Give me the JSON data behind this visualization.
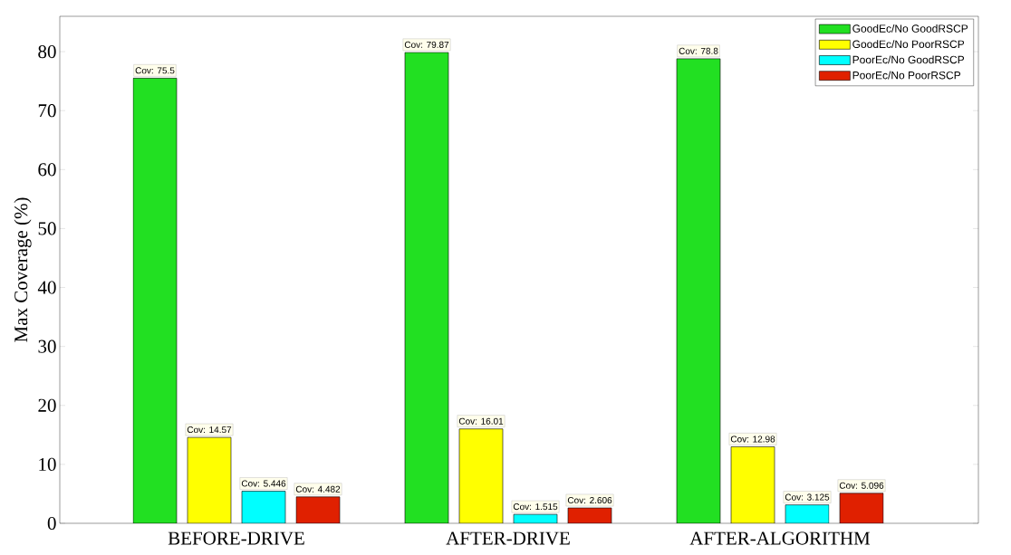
{
  "chart_data": {
    "type": "bar",
    "ylabel": "Max Coverage (%)",
    "categories": [
      "BEFORE-DRIVE",
      "AFTER-DRIVE",
      "AFTER-ALGORITHM"
    ],
    "series": [
      {
        "name": "GoodEc/No  GoodRSCP",
        "color": "#22e022",
        "values": [
          75.5,
          79.87,
          78.8
        ],
        "value_labels": [
          "Cov: 75.5",
          "Cov: 79.87",
          "Cov: 78.8"
        ]
      },
      {
        "name": "GoodEc/No  PoorRSCP",
        "color": "#ffff00",
        "values": [
          14.57,
          16.01,
          12.98
        ],
        "value_labels": [
          "Cov: 14.57",
          "Cov: 16.01",
          "Cov: 12.98"
        ]
      },
      {
        "name": "PoorEc/No  GoodRSCP",
        "color": "#00ffff",
        "values": [
          5.446,
          1.515,
          3.125
        ],
        "value_labels": [
          "Cov: 5.446",
          "Cov: 1.515",
          "Cov: 3.125"
        ]
      },
      {
        "name": "PoorEc/No  PoorRSCP",
        "color": "#e02000",
        "values": [
          4.482,
          2.606,
          5.096
        ],
        "value_labels": [
          "Cov: 4.482",
          "Cov: 2.606",
          "Cov: 5.096"
        ]
      }
    ],
    "ylim": [
      0,
      86
    ],
    "yticks": [
      0,
      10,
      20,
      30,
      40,
      50,
      60,
      70,
      80
    ],
    "grid": false,
    "legend": "top right"
  }
}
